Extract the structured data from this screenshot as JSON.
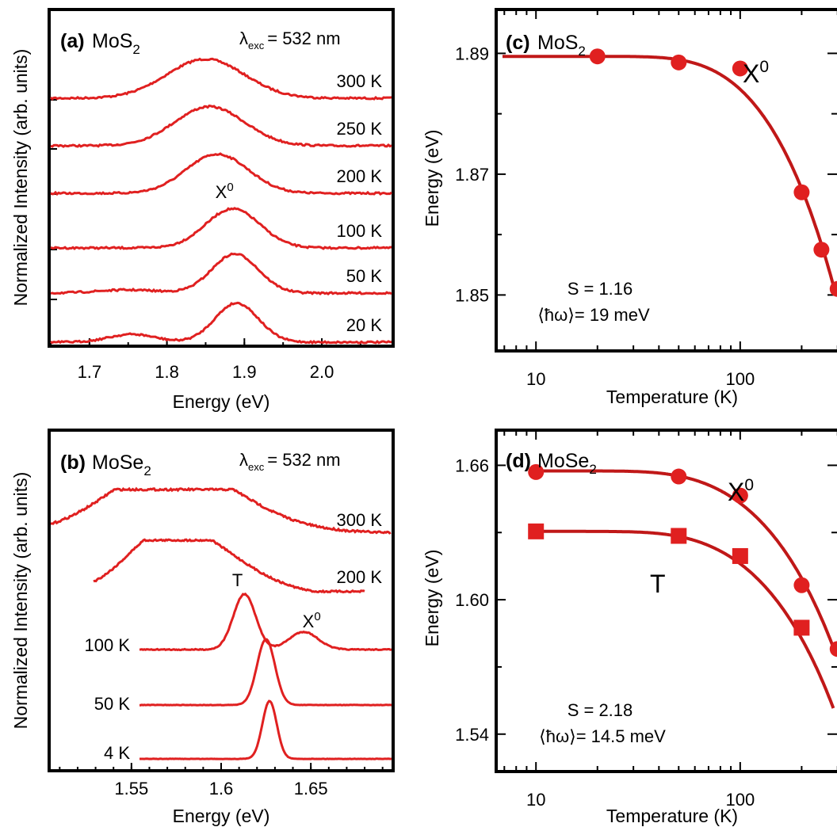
{
  "chart_data": [
    {
      "type": "line",
      "panel_label": "(a)",
      "material": "MoS",
      "material_sub": "2",
      "excitation_symbol": "λ",
      "excitation_sub": "exc",
      "excitation_value": "= 532 nm",
      "xlabel": "Energy (eV)",
      "ylabel": "Normalized Intensity (arb. units)",
      "xlim": [
        1.65,
        2.09
      ],
      "xticks": [
        "1.7",
        "1.8",
        "1.9",
        "2.0"
      ],
      "annotation": {
        "text": "X",
        "sup": "0",
        "x": 1.885
      },
      "color": "#e02020",
      "series": [
        {
          "name": "300 K",
          "peak": 1.85,
          "width": 0.05,
          "amp": 0.95,
          "offset": 5
        },
        {
          "name": "250 K",
          "peak": 1.855,
          "width": 0.045,
          "amp": 0.95,
          "offset": 4
        },
        {
          "name": "200 K",
          "peak": 1.865,
          "width": 0.04,
          "amp": 0.95,
          "offset": 3
        },
        {
          "name": "100 K",
          "peak": 1.885,
          "width": 0.035,
          "amp": 0.95,
          "offset": 2
        },
        {
          "name": "50 K",
          "peak": 1.888,
          "width": 0.03,
          "amp": 0.95,
          "offset": 1
        },
        {
          "name": "20 K",
          "peak": 1.89,
          "width": 0.028,
          "amp": 0.95,
          "offset": 0
        }
      ]
    },
    {
      "type": "line",
      "panel_label": "(b)",
      "material": "MoSe",
      "material_sub": "2",
      "excitation_symbol": "λ",
      "excitation_sub": "exc",
      "excitation_value": "= 532 nm",
      "xlabel": "Energy (eV)",
      "ylabel": "Normalized Intensity (arb. units)",
      "xlim": [
        1.505,
        1.695
      ],
      "xticks": [
        "1.55",
        "1.6",
        "1.65"
      ],
      "annotations": [
        {
          "text": "T",
          "sup": "",
          "x": 1.607
        },
        {
          "text": "X",
          "sup": "0",
          "x": 1.648
        }
      ],
      "color": "#e02020",
      "series": [
        {
          "name": "300 K",
          "peak": 1.575,
          "width": 0.03
        },
        {
          "name": "200 K",
          "peak": 1.578,
          "width": 0.025
        },
        {
          "name": "100 K",
          "peak": 1.613,
          "width": 0.007
        },
        {
          "name": "50 K",
          "peak": 1.625,
          "width": 0.005
        },
        {
          "name": "4 K",
          "peak": 1.627,
          "width": 0.004
        }
      ]
    },
    {
      "type": "scatter",
      "panel_label": "(c)",
      "material": "MoS",
      "material_sub": "2",
      "xlabel": "Temperature (K)",
      "ylabel": "Energy (eV)",
      "xscale": "log",
      "xlim": [
        6.5,
        320
      ],
      "ylim": [
        1.841,
        1.897
      ],
      "xticks": [
        "10",
        "100"
      ],
      "yticks": [
        "1.85",
        "1.87",
        "1.89"
      ],
      "marker": "circle",
      "series": [
        {
          "name": "X",
          "name_sup": "0",
          "x": [
            20,
            50,
            100,
            200,
            250,
            300
          ],
          "y": [
            1.8895,
            1.8885,
            1.8875,
            1.867,
            1.8575,
            1.851
          ]
        }
      ],
      "fit": {
        "E0": 1.8895,
        "S": 1.16,
        "hw_meV": 19
      },
      "text_S": "S = 1.16",
      "text_hw": "⟨ħω⟩= 19 meV"
    },
    {
      "type": "scatter",
      "panel_label": "(d)",
      "material": "MoSe",
      "material_sub": "2",
      "xlabel": "Temperature (K)",
      "ylabel": "Energy (eV)",
      "xscale": "log",
      "xlim": [
        6.5,
        320
      ],
      "ylim": [
        1.524,
        1.675
      ],
      "xticks": [
        "10",
        "100"
      ],
      "yticks": [
        "1.54",
        "1.60",
        "1.66"
      ],
      "series": [
        {
          "name": "X",
          "name_sup": "0",
          "marker": "circle",
          "x": [
            10,
            50,
            100,
            200,
            300
          ],
          "y": [
            1.657,
            1.655,
            1.6465,
            1.6065,
            1.578
          ]
        },
        {
          "name": "T",
          "name_sup": "",
          "marker": "square",
          "x": [
            10,
            50,
            100,
            200
          ],
          "y": [
            1.6305,
            1.6285,
            1.6195,
            1.5875
          ]
        }
      ],
      "fits": [
        {
          "E0": 1.6575,
          "S": 2.18,
          "hw_meV": 14.5
        },
        {
          "E0": 1.6305,
          "S": 2.18,
          "hw_meV": 14.5
        }
      ],
      "text_S": "S = 2.18",
      "text_hw": "⟨ħω⟩= 14.5 meV"
    }
  ],
  "colors": {
    "data": "#e02020",
    "fit": "#c01818",
    "axes": "#000000"
  }
}
